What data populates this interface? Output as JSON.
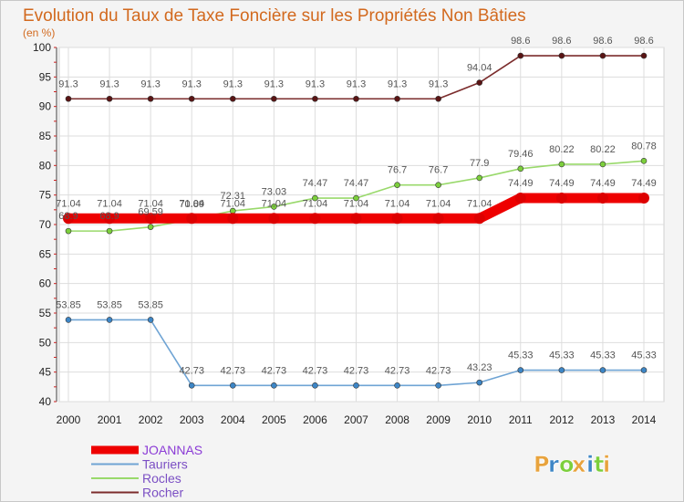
{
  "chart_data": {
    "type": "line",
    "title": "Evolution du Taux de Taxe Foncière sur les Propriétés Non Bâties",
    "unit_label": "(en %)",
    "xlabel": "",
    "ylabel": "(en %)",
    "categories": [
      "2000",
      "2001",
      "2002",
      "2003",
      "2004",
      "2005",
      "2006",
      "2007",
      "2008",
      "2009",
      "2010",
      "2011",
      "2012",
      "2013",
      "2014"
    ],
    "ylim": [
      40,
      100
    ],
    "yticks": [
      40,
      45,
      50,
      55,
      60,
      65,
      70,
      75,
      80,
      85,
      90,
      95,
      100
    ],
    "grid": true,
    "series": [
      {
        "name": "Rocher",
        "color": "#7b2c2c",
        "marker_color": "#5a1414",
        "values": [
          91.3,
          91.3,
          91.3,
          91.3,
          91.3,
          91.3,
          91.3,
          91.3,
          91.3,
          91.3,
          94.04,
          98.6,
          98.6,
          98.6,
          98.6
        ],
        "labels": [
          "91.3",
          "91.3",
          "91.3",
          "91.3",
          "91.3",
          "91.3",
          "91.3",
          "91.3",
          "91.3",
          "91.3",
          "94.04",
          "98.6",
          "98.6",
          "98.6",
          "98.6"
        ]
      },
      {
        "name": "Rocles",
        "color": "#99d96b",
        "marker_color": "#7ccf3c",
        "values": [
          68.9,
          68.9,
          69.59,
          70.89,
          72.31,
          73.03,
          74.47,
          74.47,
          76.7,
          76.7,
          77.9,
          79.46,
          80.22,
          80.22,
          80.78
        ],
        "labels": [
          "68.9",
          "68.9",
          "69.59",
          "70.89",
          "72.31",
          "73.03",
          "74.47",
          "74.47",
          "76.7",
          "76.7",
          "77.9",
          "79.46",
          "80.22",
          "80.22",
          "80.78"
        ]
      },
      {
        "name": "JOANNAS",
        "color": "#ee0000",
        "marker_color": "#dd0000",
        "values": [
          71.04,
          71.04,
          71.04,
          71.04,
          71.04,
          71.04,
          71.04,
          71.04,
          71.04,
          71.04,
          71.04,
          74.49,
          74.49,
          74.49,
          74.49
        ],
        "labels": [
          "71.04",
          "71.04",
          "71.04",
          "71.04",
          "71.04",
          "71.04",
          "71.04",
          "71.04",
          "71.04",
          "71.04",
          "71.04",
          "74.49",
          "74.49",
          "74.49",
          "74.49"
        ]
      },
      {
        "name": "Tauriers",
        "color": "#6fa4d4",
        "marker_color": "#3d86c6",
        "values": [
          53.85,
          53.85,
          53.85,
          42.73,
          42.73,
          42.73,
          42.73,
          42.73,
          42.73,
          42.73,
          43.23,
          45.33,
          45.33,
          45.33,
          45.33
        ],
        "labels": [
          "53.85",
          "53.85",
          "53.85",
          "42.73",
          "42.73",
          "42.73",
          "42.73",
          "42.73",
          "42.73",
          "42.73",
          "43.23",
          "45.33",
          "45.33",
          "45.33",
          "45.33"
        ]
      }
    ],
    "legend": [
      "JOANNAS",
      "Tauriers",
      "Rocles",
      "Rocher"
    ],
    "legend_colors": [
      "#ee0000",
      "#6fa4d4",
      "#99d96b",
      "#7b2c2c"
    ]
  },
  "logo": {
    "text": "Proxiti",
    "colors": [
      "#e8a33d",
      "#3d86c6",
      "#7ccf3c",
      "#e8a33d",
      "#3d86c6",
      "#7ccf3c",
      "#e8a33d"
    ]
  }
}
